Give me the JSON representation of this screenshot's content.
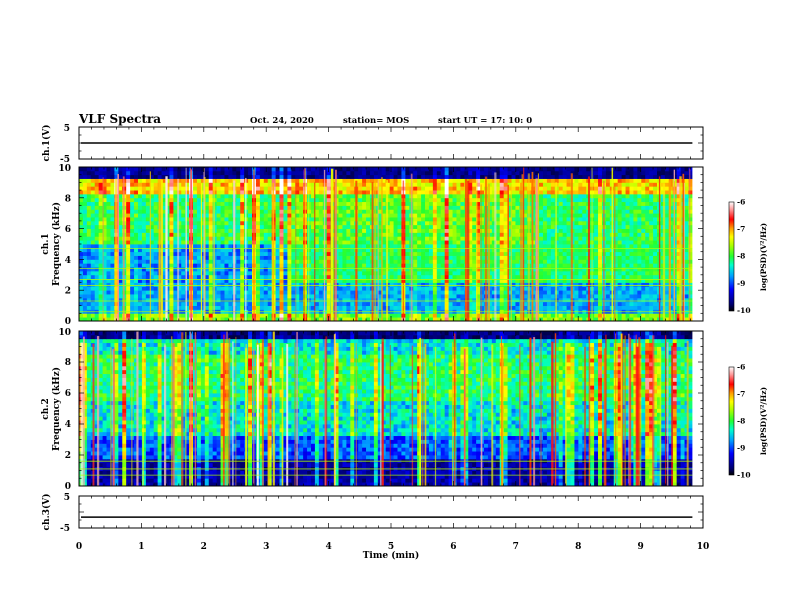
{
  "header": {
    "title": "VLF Spectra",
    "date": "Oct. 24, 2020",
    "station": "station= MOS",
    "start": "start  UT =   17: 10: 0"
  },
  "chart_data": {
    "type": "heatmap",
    "x_axis": {
      "label": "Time  (min)",
      "range": [
        0,
        10
      ],
      "ticks": [
        "0",
        "1",
        "2",
        "3",
        "4",
        "5",
        "6",
        "7",
        "8",
        "9",
        "10"
      ],
      "data_end": 9.83
    },
    "panels": [
      {
        "id": "ch1-waveform",
        "type": "line",
        "ylabel": "ch.1(V)",
        "ylim": [
          -5,
          5
        ],
        "yticks": [
          "5",
          "-5"
        ],
        "trace_level": 0
      },
      {
        "id": "ch1-spectrogram",
        "type": "heatmap",
        "ylabel_line1": "ch.1",
        "ylabel_line2": "Frequency  (kHz)",
        "ylim": [
          0,
          10
        ],
        "yticks": [
          "0",
          "2",
          "4",
          "6",
          "8",
          "10"
        ],
        "tonal_lines_khz": [
          0.6,
          1.3,
          2.3,
          2.7,
          3.4,
          4.7
        ],
        "colorbar": {
          "label": "log(PSD)(V²/Hz)",
          "range": [
            -10,
            -6
          ],
          "ticks": [
            "-6",
            "-7",
            "-8",
            "-9",
            "-10"
          ]
        }
      },
      {
        "id": "ch2-spectrogram",
        "type": "heatmap",
        "ylabel_line1": "ch.2",
        "ylabel_line2": "Frequency  (kHz)",
        "ylim": [
          0,
          10
        ],
        "yticks": [
          "0",
          "2",
          "4",
          "6",
          "8",
          "10"
        ],
        "tonal_lines_khz": [
          0.7,
          1.1,
          1.6
        ],
        "colorbar": {
          "label": "log(PSD)(V²/Hz)",
          "range": [
            -10,
            -6
          ],
          "ticks": [
            "-6",
            "-7",
            "-8",
            "-9",
            "-10"
          ]
        }
      },
      {
        "id": "ch3-waveform",
        "type": "line",
        "ylabel": "ch.3(V)",
        "ylim": [
          -5,
          5
        ],
        "yticks": [
          "5",
          "-5"
        ],
        "trace_level": -1.6
      }
    ],
    "colormap": [
      "#000000",
      "#00008c",
      "#0000ff",
      "#00aaff",
      "#00ffcc",
      "#22ff33",
      "#aaff00",
      "#ffff00",
      "#ff9900",
      "#ff0000",
      "#ff9999",
      "#ffffff"
    ]
  }
}
